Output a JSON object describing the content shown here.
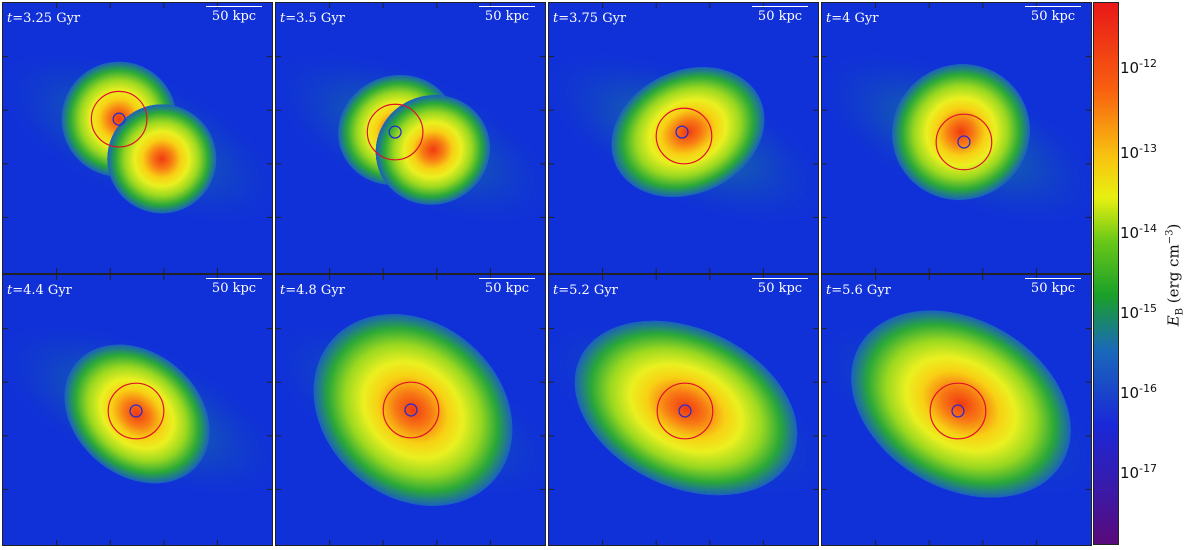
{
  "panels": [
    {
      "time_label": "=3.25  Gyr",
      "t_symbol": "t",
      "scale_label": "50  kpc",
      "variant": "pair-separate"
    },
    {
      "time_label": "=3.5  Gyr",
      "t_symbol": "t",
      "scale_label": "50  kpc",
      "variant": "pair-close"
    },
    {
      "time_label": "=3.75  Gyr",
      "t_symbol": "t",
      "scale_label": "50  kpc",
      "variant": "merging"
    },
    {
      "time_label": "=4  Gyr",
      "t_symbol": "t",
      "scale_label": "50  kpc",
      "variant": "merged"
    },
    {
      "time_label": "=4.4  Gyr",
      "t_symbol": "t",
      "scale_label": "50  kpc",
      "variant": "relaxing"
    },
    {
      "time_label": "=4.8  Gyr",
      "t_symbol": "t",
      "scale_label": "50  kpc",
      "variant": "extended"
    },
    {
      "time_label": "=5.2  Gyr",
      "t_symbol": "t",
      "scale_label": "50  kpc",
      "variant": "spiral"
    },
    {
      "time_label": "=5.6  Gyr",
      "t_symbol": "t",
      "scale_label": "50  kpc",
      "variant": "spiral-late"
    }
  ],
  "colorbar": {
    "ticks": [
      {
        "base": "10",
        "exp": "-12"
      },
      {
        "base": "10",
        "exp": "-13"
      },
      {
        "base": "10",
        "exp": "-14"
      },
      {
        "base": "10",
        "exp": "-15"
      },
      {
        "base": "10",
        "exp": "-16"
      },
      {
        "base": "10",
        "exp": "-17"
      }
    ],
    "label_symbol": "E",
    "label_sub": "B",
    "label_units": "(erg cm",
    "label_units_exp": "−3",
    "label_close": ")"
  },
  "colors": {
    "background_field": "#1030d8",
    "ring": "#e0102a",
    "core_circle": "#2a2ad0"
  }
}
